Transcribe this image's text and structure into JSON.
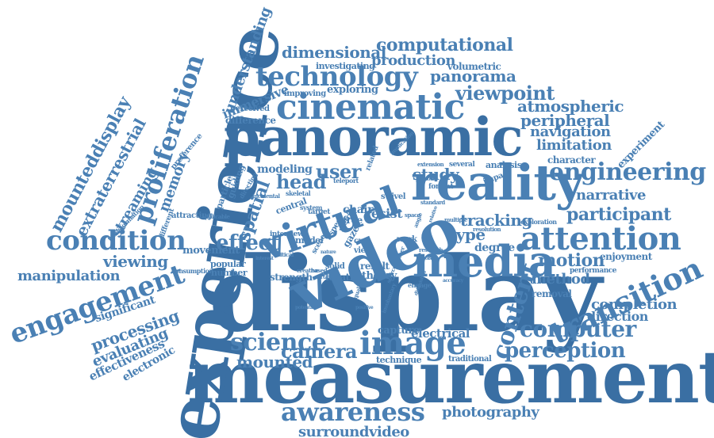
{
  "colors": {
    "word": "#4a80b4",
    "word_dark": "#3a6fa3",
    "word_light": "#5f90c0",
    "background": "#ffffff"
  },
  "words": {
    "measurement": "measurement",
    "display": "display",
    "panoramic": "panoramic",
    "experience": "experience",
    "video": "video",
    "reality": "reality",
    "virtual": "virtual",
    "media": "media",
    "cinematic": "cinematic",
    "technology": "technology",
    "image": "image",
    "attention": "attention",
    "engineering": "engineering",
    "transition": "transition",
    "awareness": "awareness",
    "science": "science",
    "computer": "computer",
    "perception": "perception",
    "condition": "condition",
    "engagement": "engagement",
    "proliferation": "proliferation",
    "participant": "participant",
    "content": "content",
    "computational": "computational",
    "dimensional": "dimensional",
    "production": "production",
    "panorama": "panorama",
    "viewpoint": "viewpoint",
    "atmospheric": "atmospheric",
    "peripheral": "peripheral",
    "navigation": "navigation",
    "limitation": "limitation",
    "narrative": "narrative",
    "tracking": "tracking",
    "type": "type",
    "motion": "motion",
    "method": "method",
    "completion": "completion",
    "direction": "direction",
    "camera": "camera",
    "mounted": "mounted",
    "photography": "photography",
    "surroundvideo": "surroundvideo",
    "head": "head",
    "user": "user",
    "study": "study",
    "modeling": "modeling",
    "effect": "effect",
    "spatial": "spatial",
    "memory": "memory",
    "viewing": "viewing",
    "manipulation": "manipulation",
    "processing": "processing",
    "evaluating": "evaluating",
    "effectiveness": "effectiveness",
    "electronic": "electronic",
    "significant": "significant",
    "streaming": "streaming",
    "extraterrestrial": "extraterrestrial",
    "mounteddisplay": "mounteddisplay",
    "understanding": "understanding",
    "immersive": "immersive",
    "difference": "difference",
    "perceived": "perceived",
    "exploring": "exploring",
    "improving": "improving",
    "investigating": "investigating",
    "volumetric": "volumetric",
    "character": "character",
    "experiment": "experiment",
    "enjoyment": "enjoyment",
    "performance": "performance",
    "removal": "removal",
    "electrical": "electrical",
    "capture": "capture",
    "technique": "technique",
    "traditional": "traditional",
    "location": "location",
    "theory": "theory",
    "result": "result",
    "degree": "degree",
    "analysis": "analysis",
    "several": "several",
    "impact": "impact",
    "chair": "chair",
    "resist": "resist",
    "free": "free",
    "swivel": "swivel",
    "format": "format",
    "movement": "movement",
    "popular": "popular",
    "number": "number",
    "strength": "strength",
    "consumption": "consumption",
    "attracting": "attracting",
    "particle": "particle",
    "guiding": "guiding",
    "model": "model",
    "system": "system",
    "target": "target",
    "work": "work",
    "view": "view",
    "cue": "cue",
    "gaze": "gaze",
    "aspect": "aspect",
    "related": "related",
    "teleport": "teleport",
    "exploration": "exploration",
    "resolution": "resolution",
    "research": "research",
    "standard": "standard",
    "extension": "extension",
    "preference": "preference",
    "transformation": "transformation",
    "different": "different",
    "interview": "interview",
    "solid": "solid",
    "engage": "engage",
    "multiple": "multiple",
    "accuracy": "accuracy",
    "central": "central",
    "skeletal": "skeletal",
    "critical": "critical",
    "directing": "directing",
    "incidental": "incidental",
    "applicable": "applicable",
    "implication": "implication",
    "previous": "previous",
    "scene": "scene",
    "metric": "metric",
    "space": "space",
    "quality": "quality",
    "potential": "potential",
    "involuntary": "involuntary",
    "interest": "interest",
    "creative": "creative",
    "based": "based",
    "certain": "certain",
    "source": "source",
    "further": "further",
    "tools": "tools",
    "positive": "positive",
    "diminished": "diminished",
    "nature": "nature",
    "angle": "angle",
    "relative": "relative"
  }
}
